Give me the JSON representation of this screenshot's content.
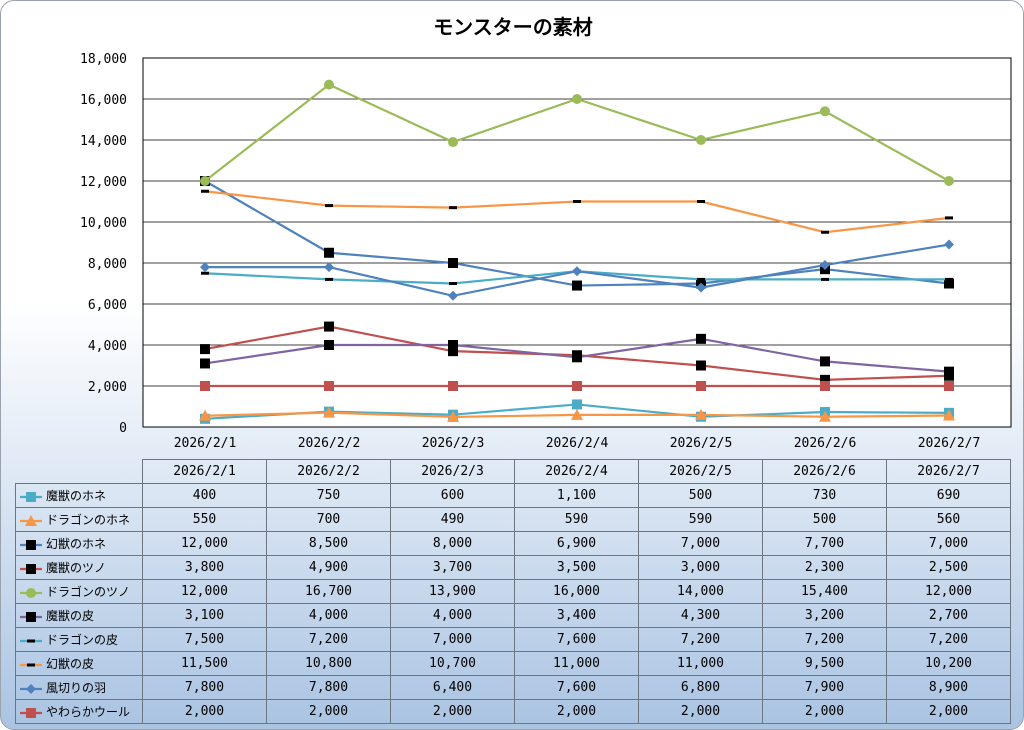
{
  "chart_data": {
    "type": "line",
    "title": "モンスターの素材",
    "categories": [
      "2026/2/1",
      "2026/2/2",
      "2026/2/3",
      "2026/2/4",
      "2026/2/5",
      "2026/2/6",
      "2026/2/7"
    ],
    "ylim": [
      0,
      18000
    ],
    "yticks": [
      "0",
      "2,000",
      "4,000",
      "6,000",
      "8,000",
      "10,000",
      "12,000",
      "14,000",
      "16,000",
      "18,000"
    ],
    "grid": true,
    "legend": "data-table",
    "series": [
      {
        "name": "魔獣のホネ",
        "color": "#4bacc6",
        "marker": "square",
        "values": [
          400,
          750,
          600,
          1100,
          500,
          730,
          690
        ],
        "labels": [
          "400",
          "750",
          "600",
          "1,100",
          "500",
          "730",
          "690"
        ]
      },
      {
        "name": "ドラゴンのホネ",
        "color": "#f79646",
        "marker": "triangle",
        "values": [
          550,
          700,
          490,
          590,
          590,
          500,
          560
        ],
        "labels": [
          "550",
          "700",
          "490",
          "590",
          "590",
          "500",
          "560"
        ]
      },
      {
        "name": "幻獣のホネ",
        "color": "#4f81bd",
        "marker": "square-black",
        "values": [
          12000,
          8500,
          8000,
          6900,
          7000,
          7700,
          7000
        ],
        "labels": [
          "12,000",
          "8,500",
          "8,000",
          "6,900",
          "7,000",
          "7,700",
          "7,000"
        ]
      },
      {
        "name": "魔獣のツノ",
        "color": "#c0504d",
        "marker": "square-black",
        "values": [
          3800,
          4900,
          3700,
          3500,
          3000,
          2300,
          2500
        ],
        "labels": [
          "3,800",
          "4,900",
          "3,700",
          "3,500",
          "3,000",
          "2,300",
          "2,500"
        ]
      },
      {
        "name": "ドラゴンのツノ",
        "color": "#9bbb59",
        "marker": "circle",
        "values": [
          12000,
          16700,
          13900,
          16000,
          14000,
          15400,
          12000
        ],
        "labels": [
          "12,000",
          "16,700",
          "13,900",
          "16,000",
          "14,000",
          "15,400",
          "12,000"
        ]
      },
      {
        "name": "魔獣の皮",
        "color": "#8064a2",
        "marker": "square-black",
        "values": [
          3100,
          4000,
          4000,
          3400,
          4300,
          3200,
          2700
        ],
        "labels": [
          "3,100",
          "4,000",
          "4,000",
          "3,400",
          "4,300",
          "3,200",
          "2,700"
        ]
      },
      {
        "name": "ドラゴンの皮",
        "color": "#4bacc6",
        "marker": "dash",
        "values": [
          7500,
          7200,
          7000,
          7600,
          7200,
          7200,
          7200
        ],
        "labels": [
          "7,500",
          "7,200",
          "7,000",
          "7,600",
          "7,200",
          "7,200",
          "7,200"
        ]
      },
      {
        "name": "幻獣の皮",
        "color": "#f79646",
        "marker": "dash",
        "values": [
          11500,
          10800,
          10700,
          11000,
          11000,
          9500,
          10200
        ],
        "labels": [
          "11,500",
          "10,800",
          "10,700",
          "11,000",
          "11,000",
          "9,500",
          "10,200"
        ]
      },
      {
        "name": "風切りの羽",
        "color": "#4f81bd",
        "marker": "diamond",
        "values": [
          7800,
          7800,
          6400,
          7600,
          6800,
          7900,
          8900
        ],
        "labels": [
          "7,800",
          "7,800",
          "6,400",
          "7,600",
          "6,800",
          "7,900",
          "8,900"
        ]
      },
      {
        "name": "やわらかウール",
        "color": "#c0504d",
        "marker": "square",
        "values": [
          2000,
          2000,
          2000,
          2000,
          2000,
          2000,
          2000
        ],
        "labels": [
          "2,000",
          "2,000",
          "2,000",
          "2,000",
          "2,000",
          "2,000",
          "2,000"
        ]
      }
    ]
  }
}
